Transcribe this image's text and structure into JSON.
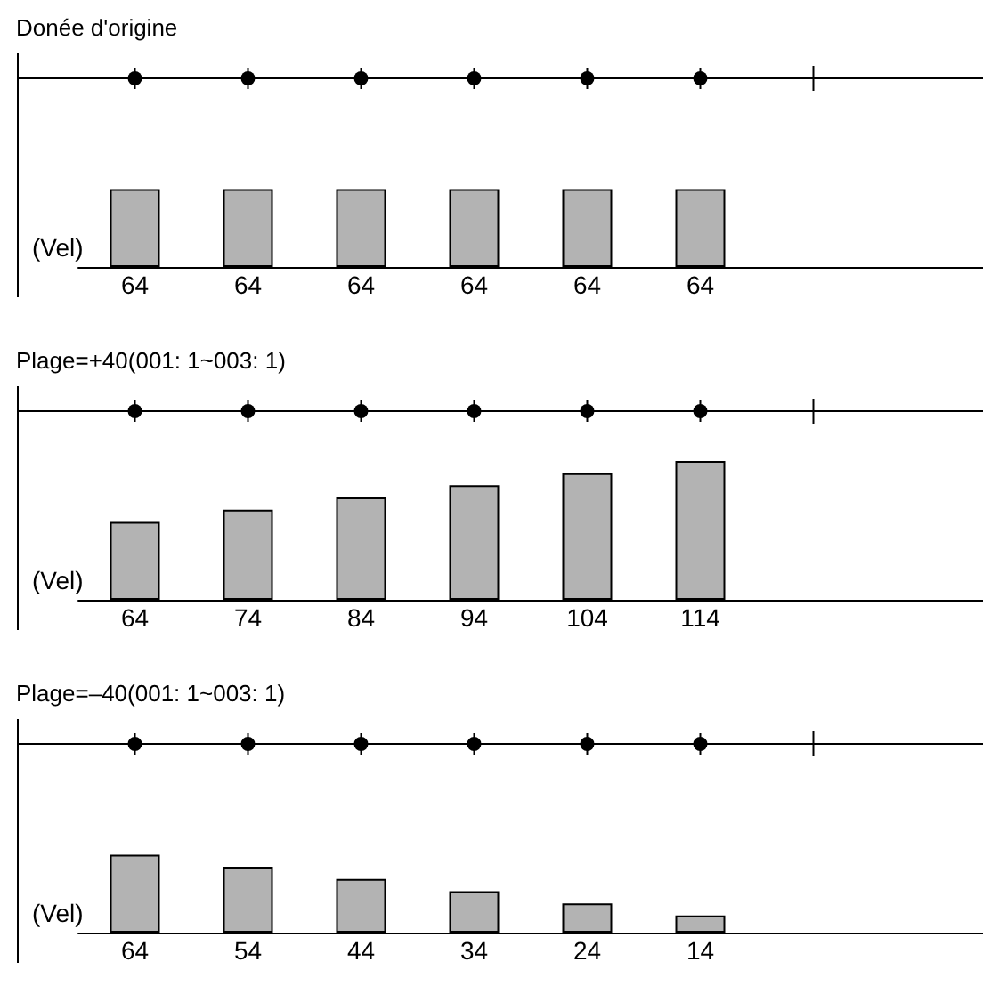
{
  "chart_data": [
    {
      "type": "bar",
      "title": "Donée d'origine",
      "ylabel": "(Vel)",
      "categories": [
        null,
        null,
        null,
        null,
        null,
        null
      ],
      "series": [
        {
          "color": "#b3b3b3",
          "values": [
            64,
            64,
            64,
            64,
            64,
            64
          ]
        }
      ],
      "data_labels": true
    },
    {
      "type": "bar",
      "title": "Plage=+40(001: 1~003: 1)",
      "ylabel": "(Vel)",
      "categories": [
        null,
        null,
        null,
        null,
        null,
        null
      ],
      "series": [
        {
          "color": "#b3b3b3",
          "values": [
            64,
            74,
            84,
            94,
            104,
            114
          ]
        }
      ],
      "data_labels": true
    },
    {
      "type": "bar",
      "title": "Plage=–40(001: 1~003: 1)",
      "ylabel": "(Vel)",
      "categories": [
        null,
        null,
        null,
        null,
        null,
        null
      ],
      "series": [
        {
          "color": "#b3b3b3",
          "values": [
            64,
            54,
            44,
            34,
            24,
            14
          ]
        }
      ],
      "data_labels": true
    }
  ]
}
